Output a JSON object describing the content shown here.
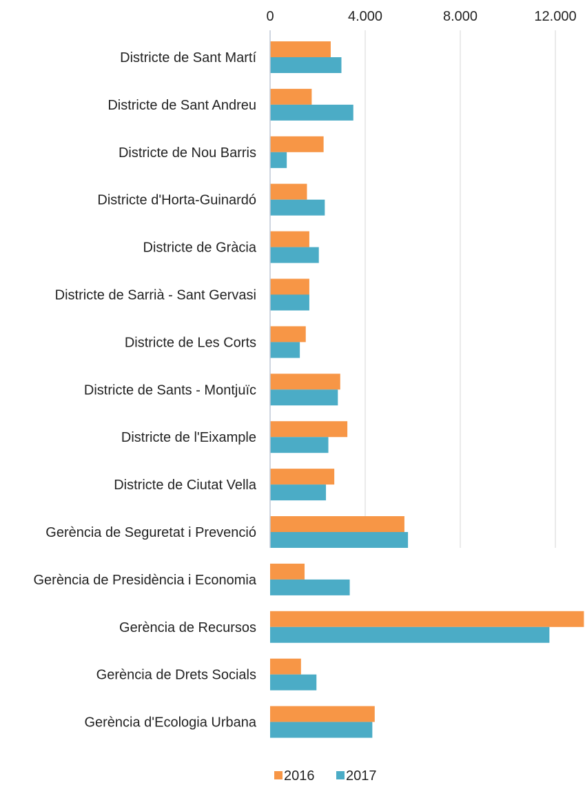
{
  "chart_data": {
    "type": "bar",
    "orientation": "horizontal",
    "categories": [
      "Districte de Sant Martí",
      "Districte de Sant Andreu",
      "Districte de Nou Barris",
      "Districte d'Horta-Guinardó",
      "Districte de Gràcia",
      "Districte de Sarrià - Sant Gervasi",
      "Districte de Les Corts",
      "Districte de Sants - Montjuïc",
      "Districte de l'Eixample",
      "Districte de Ciutat Vella",
      "Gerència de Seguretat i Prevenció",
      "Gerència de Presidència i Economia",
      "Gerència de Recursos",
      "Gerència de Drets Socials",
      "Gerència d'Ecologia Urbana"
    ],
    "series": [
      {
        "name": "2016",
        "color": "#F79646",
        "values": [
          2550,
          1750,
          2250,
          1550,
          1650,
          1650,
          1500,
          2950,
          3250,
          2700,
          5650,
          1450,
          13200,
          1300,
          4400
        ]
      },
      {
        "name": "2017",
        "color": "#4BACC6",
        "values": [
          3000,
          3500,
          700,
          2300,
          2050,
          1650,
          1250,
          2850,
          2450,
          2350,
          5800,
          3350,
          11750,
          1950,
          4300
        ]
      }
    ],
    "x_ticks": [
      "0",
      "4.000",
      "8.000",
      "12.000"
    ],
    "x_tick_values": [
      0,
      4000,
      8000,
      12000
    ],
    "xlim": [
      0,
      13200
    ],
    "axis_position": "top",
    "grid": "vertical",
    "legend_position": "bottom"
  }
}
